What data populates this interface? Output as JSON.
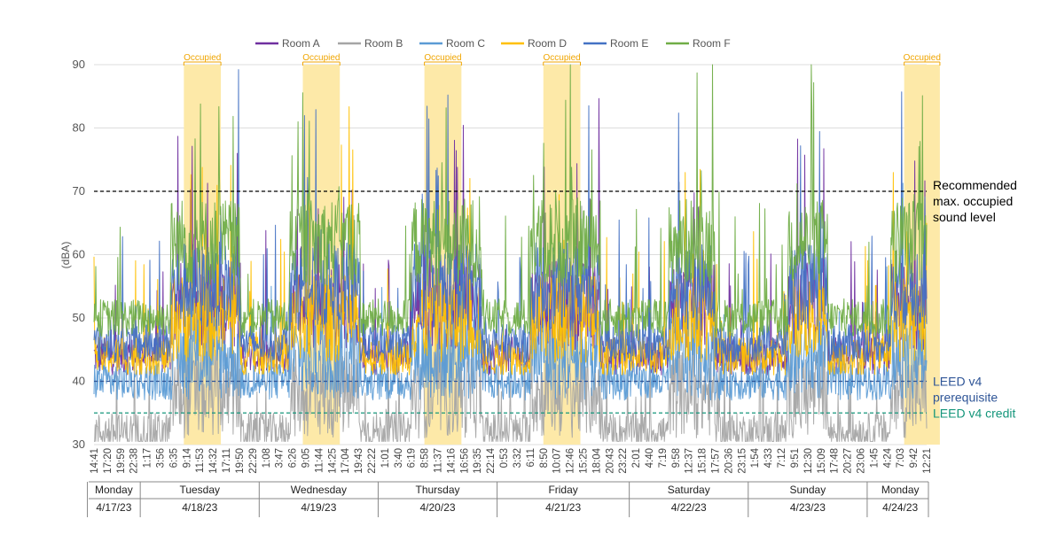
{
  "chart_data": {
    "type": "line",
    "title": "",
    "ylabel": "(dBA)",
    "xlabel": "",
    "ylim": [
      30,
      90
    ],
    "yticks": [
      "30",
      "40",
      "50",
      "60",
      "70",
      "80",
      "90"
    ],
    "grid": true,
    "legend_position": "top",
    "series": [
      {
        "name": "Room A",
        "color": "#7030a0",
        "base_occupied": 52,
        "base_unoccupied": 44,
        "spike": 0.06
      },
      {
        "name": "Room B",
        "color": "#a5a5a5",
        "base_occupied": 38,
        "base_unoccupied": 32,
        "spike": 0.04
      },
      {
        "name": "Room C",
        "color": "#5b9bd5",
        "base_occupied": 44,
        "base_unoccupied": 40,
        "spike": 0.02
      },
      {
        "name": "Room D",
        "color": "#ffc000",
        "base_occupied": 50,
        "base_unoccupied": 44,
        "spike": 0.05
      },
      {
        "name": "Room E",
        "color": "#4472c4",
        "base_occupied": 55,
        "base_unoccupied": 46,
        "spike": 0.05
      },
      {
        "name": "Room F",
        "color": "#70ad47",
        "base_occupied": 62,
        "base_unoccupied": 50,
        "spike": 0.05
      }
    ],
    "x_time_labels": [
      "14:41",
      "17:20",
      "19:59",
      "22:38",
      "1:17",
      "3:56",
      "6:35",
      "9:14",
      "11:53",
      "14:32",
      "17:11",
      "19:50",
      "22:29",
      "1:08",
      "3:47",
      "6:26",
      "9:05",
      "11:44",
      "14:25",
      "17:04",
      "19:43",
      "22:22",
      "1:01",
      "3:40",
      "6:19",
      "8:58",
      "11:37",
      "14:16",
      "16:56",
      "19:35",
      "22:14",
      "0:53",
      "3:32",
      "6:11",
      "8:50",
      "10:07",
      "12:46",
      "15:25",
      "18:04",
      "20:43",
      "23:22",
      "2:01",
      "4:40",
      "7:19",
      "9:58",
      "12:37",
      "15:18",
      "17:57",
      "20:36",
      "23:15",
      "1:54",
      "4:33",
      "7:12",
      "9:51",
      "12:30",
      "15:09",
      "17:48",
      "20:27",
      "23:06",
      "1:45",
      "4:24",
      "7:03",
      "9:42",
      "12:21"
    ],
    "days": [
      {
        "day": "Monday",
        "date": "4/17/23",
        "start_tick": 0,
        "end_tick": 4
      },
      {
        "day": "Tuesday",
        "date": "4/18/23",
        "start_tick": 4,
        "end_tick": 13
      },
      {
        "day": "Wednesday",
        "date": "4/19/23",
        "start_tick": 13,
        "end_tick": 22
      },
      {
        "day": "Thursday",
        "date": "4/20/23",
        "start_tick": 22,
        "end_tick": 31
      },
      {
        "day": "Friday",
        "date": "4/21/23",
        "start_tick": 31,
        "end_tick": 41
      },
      {
        "day": "Saturday",
        "date": "4/22/23",
        "start_tick": 41,
        "end_tick": 50
      },
      {
        "day": "Sunday",
        "date": "4/23/23",
        "start_tick": 50,
        "end_tick": 59
      },
      {
        "day": "Monday",
        "date": "4/24/23",
        "start_tick": 59,
        "end_tick": 64
      }
    ],
    "occupied_periods": [
      {
        "label": "Occupied",
        "start_tick": 6.8,
        "end_tick": 9.6
      },
      {
        "label": "Occupied",
        "start_tick": 15.8,
        "end_tick": 18.6
      },
      {
        "label": "Occupied",
        "start_tick": 25.0,
        "end_tick": 27.8
      },
      {
        "label": "Occupied",
        "start_tick": 34.0,
        "end_tick": 36.8
      },
      {
        "label": "Occupied",
        "start_tick": 61.3,
        "end_tick": 64.0
      }
    ],
    "reference_lines": [
      {
        "value": 70,
        "label_lines": [
          "Recommended",
          "max. occupied",
          "sound level"
        ],
        "color": "#000000"
      },
      {
        "value": 40,
        "label_lines": [
          "LEED v4",
          "prerequisite"
        ],
        "color": "#2f5597"
      },
      {
        "value": 35,
        "label_lines": [
          "LEED v4 credit"
        ],
        "color": "#15967b"
      }
    ],
    "occupied_fill": "#fde9a8",
    "occupied_label_color": "#f0a500"
  }
}
